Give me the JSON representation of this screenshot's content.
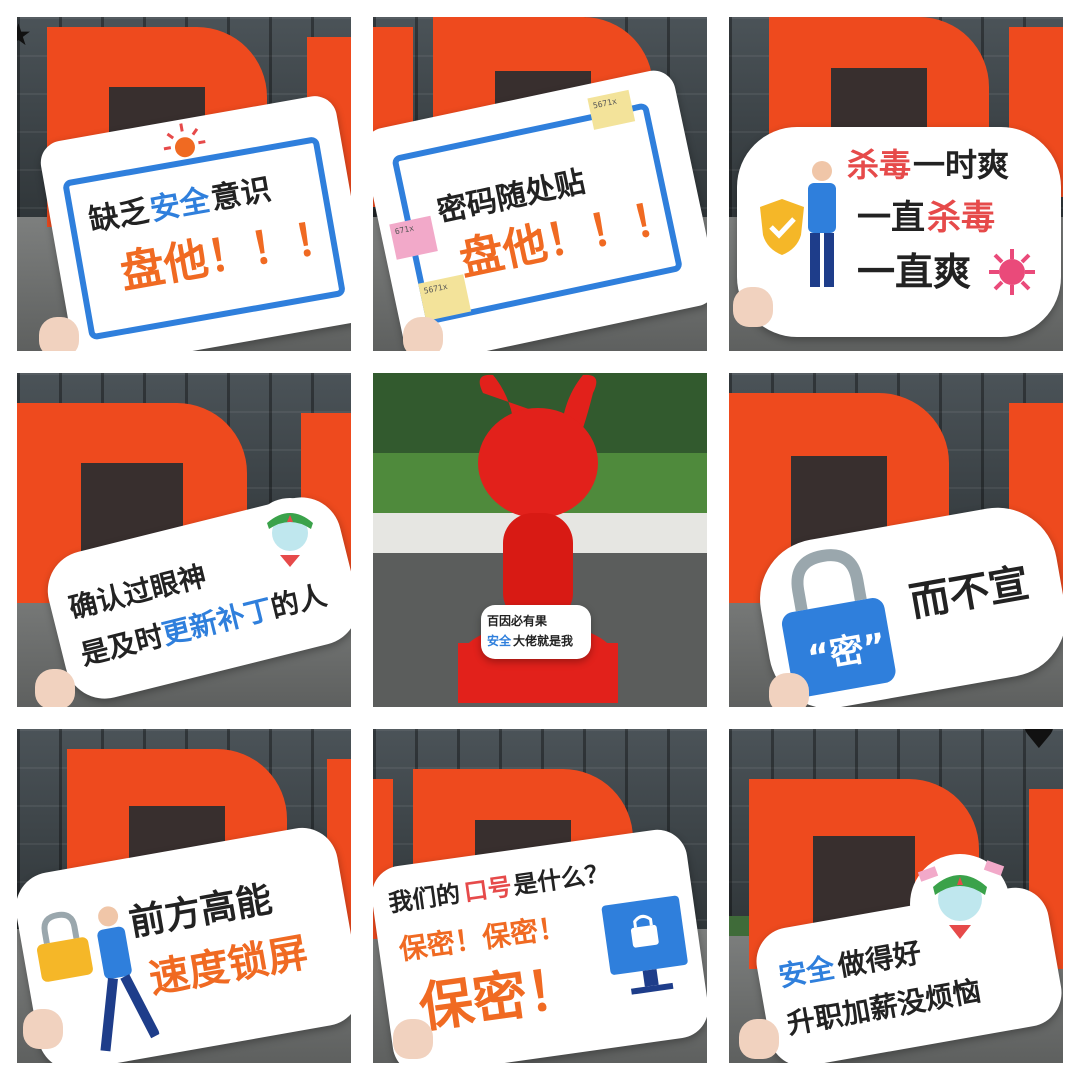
{
  "tiles": [
    {
      "id": 1,
      "lines": [
        "缺乏安全意识",
        "盘他！！！"
      ]
    },
    {
      "id": 2,
      "lines": [
        "密码随处贴",
        "盘他！！！"
      ],
      "notes": [
        "5671x",
        "671x",
        "5671x"
      ]
    },
    {
      "id": 3,
      "lines": [
        "杀毒一时爽",
        "一直杀毒",
        "一直爽"
      ]
    },
    {
      "id": 4,
      "lines": [
        "确认过眼神",
        "是及时更新补丁的人"
      ]
    },
    {
      "id": 5,
      "lines": [
        "百因必有果",
        "安全大佬就是我"
      ]
    },
    {
      "id": 6,
      "lines": [
        "“密”而不宣"
      ],
      "lock_text": "“密”",
      "tail_text": "而不宣"
    },
    {
      "id": 7,
      "lines": [
        "前方高能",
        "速度锁屏"
      ]
    },
    {
      "id": 8,
      "lines": [
        "我们的口号是什么？",
        "保密！保密！",
        "保密！"
      ]
    },
    {
      "id": 9,
      "lines": [
        "安全做得好",
        "升职加薪没烦恼"
      ]
    }
  ],
  "texts": {
    "t1_a": "缺乏",
    "t1_b": "安全",
    "t1_c": "意识",
    "t1_d": "盘他！！！",
    "t2_a": "密码随处贴",
    "t2_b": "盘他！！！",
    "t2_n1": "5671x",
    "t2_n2": "671x",
    "t2_n3": "5671x",
    "t3_a1": "杀毒",
    "t3_a2": "一时爽",
    "t3_b1": "一直",
    "t3_b2": "杀毒",
    "t3_c": "一直爽",
    "t4_a": "确认过眼神",
    "t4_b1": "是及时",
    "t4_b2": "更新补丁",
    "t4_b3": "的人",
    "t5_a": "百因必有果",
    "t5_b1": "安全",
    "t5_b2": "大佬就是我",
    "t6_lock": "“密”",
    "t6_tail": "而不宣",
    "t7_a": "前方高能",
    "t7_b": "速度锁屏",
    "t8_a1": "我们的",
    "t8_a2": "口号",
    "t8_a3": "是什么？",
    "t8_b": "保密！保密！",
    "t8_c": "保密！",
    "t9_a1": "安全",
    "t9_a2": "做得好",
    "t9_b": "升职加薪没烦恼"
  },
  "colors": {
    "mi_orange": "#ee4a1e",
    "sign_blue": "#2f7fdc",
    "sign_orange": "#f06a22",
    "sign_red": "#e64a4a",
    "text_dark": "#222222"
  },
  "icons": [
    "sun-icon",
    "shield-icon",
    "virus-icon",
    "lock-icon",
    "mascot-icon",
    "heart-icon",
    "star-icon",
    "monitor-lock-icon"
  ]
}
